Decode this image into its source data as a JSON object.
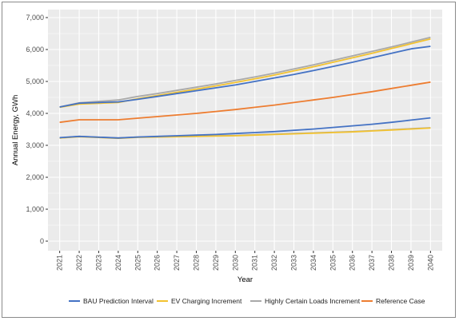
{
  "chart_data": {
    "type": "line",
    "xlabel": "Year",
    "ylabel": "Annual Energy, GWh",
    "x": [
      2021,
      2022,
      2023,
      2024,
      2025,
      2026,
      2027,
      2028,
      2029,
      2030,
      2031,
      2032,
      2033,
      2034,
      2035,
      2036,
      2037,
      2038,
      2039,
      2040
    ],
    "x_tick_labels": [
      "2021",
      "2022",
      "2023",
      "2024",
      "2025",
      "2026",
      "2027",
      "2028",
      "2029",
      "2030",
      "2031",
      "2032",
      "2033",
      "2034",
      "2035",
      "2036",
      "2037",
      "2038",
      "2039",
      "2040"
    ],
    "y_ticks": [
      0,
      1000,
      2000,
      3000,
      4000,
      5000,
      6000,
      7000
    ],
    "y_tick_labels": [
      "0",
      "1,000",
      "2,000",
      "3,000",
      "4,000",
      "5,000",
      "6,000",
      "7,000"
    ],
    "ylim": [
      -300,
      7250
    ],
    "grid": true,
    "legend_position": "bottom",
    "series": [
      {
        "name": "Highly Certain Loads Increment",
        "color": "#a9a9a9",
        "segments": [
          [
            [
              2021,
              4200
            ],
            [
              2022,
              4330
            ],
            [
              2024,
              4420
            ],
            [
              2025,
              4530
            ],
            [
              2026,
              4620
            ],
            [
              2027,
              4720
            ],
            [
              2028,
              4820
            ],
            [
              2029,
              4920
            ],
            [
              2030,
              5030
            ],
            [
              2031,
              5140
            ],
            [
              2032,
              5260
            ],
            [
              2033,
              5390
            ],
            [
              2034,
              5520
            ],
            [
              2035,
              5660
            ],
            [
              2036,
              5800
            ],
            [
              2037,
              5940
            ],
            [
              2038,
              6080
            ],
            [
              2039,
              6230
            ],
            [
              2040,
              6380
            ]
          ],
          [
            [
              2021,
              3230
            ],
            [
              2022,
              3280
            ],
            [
              2024,
              3230
            ],
            [
              2025,
              3260
            ],
            [
              2026,
              3270
            ],
            [
              2027,
              3280
            ],
            [
              2028,
              3290
            ],
            [
              2029,
              3300
            ],
            [
              2030,
              3310
            ],
            [
              2031,
              3330
            ],
            [
              2032,
              3350
            ],
            [
              2033,
              3370
            ],
            [
              2034,
              3390
            ],
            [
              2035,
              3410
            ],
            [
              2036,
              3430
            ],
            [
              2037,
              3460
            ],
            [
              2038,
              3490
            ],
            [
              2039,
              3520
            ],
            [
              2040,
              3550
            ]
          ]
        ]
      },
      {
        "name": "EV Charging Increment",
        "color": "#f2c230",
        "segments": [
          [
            [
              2021,
              4190
            ],
            [
              2022,
              4290
            ],
            [
              2024,
              4340
            ],
            [
              2025,
              4460
            ],
            [
              2026,
              4560
            ],
            [
              2027,
              4660
            ],
            [
              2028,
              4760
            ],
            [
              2029,
              4860
            ],
            [
              2030,
              4970
            ],
            [
              2031,
              5080
            ],
            [
              2032,
              5200
            ],
            [
              2033,
              5330
            ],
            [
              2034,
              5460
            ],
            [
              2035,
              5600
            ],
            [
              2036,
              5740
            ],
            [
              2037,
              5880
            ],
            [
              2038,
              6030
            ],
            [
              2039,
              6180
            ],
            [
              2040,
              6330
            ]
          ],
          [
            [
              2021,
              3230
            ],
            [
              2022,
              3270
            ],
            [
              2024,
              3220
            ],
            [
              2025,
              3250
            ],
            [
              2026,
              3260
            ],
            [
              2027,
              3270
            ],
            [
              2028,
              3280
            ],
            [
              2029,
              3290
            ],
            [
              2030,
              3300
            ],
            [
              2031,
              3320
            ],
            [
              2032,
              3340
            ],
            [
              2033,
              3360
            ],
            [
              2034,
              3380
            ],
            [
              2035,
              3400
            ],
            [
              2036,
              3420
            ],
            [
              2037,
              3450
            ],
            [
              2038,
              3480
            ],
            [
              2039,
              3510
            ],
            [
              2040,
              3540
            ]
          ]
        ]
      },
      {
        "name": "BAU Prediction Interval",
        "color": "#4472c4",
        "segments": [
          [
            [
              2021,
              4200
            ],
            [
              2022,
              4320
            ],
            [
              2024,
              4360
            ],
            [
              2025,
              4440
            ],
            [
              2026,
              4530
            ],
            [
              2027,
              4620
            ],
            [
              2028,
              4710
            ],
            [
              2029,
              4800
            ],
            [
              2030,
              4890
            ],
            [
              2031,
              5000
            ],
            [
              2032,
              5110
            ],
            [
              2033,
              5220
            ],
            [
              2034,
              5340
            ],
            [
              2035,
              5470
            ],
            [
              2036,
              5600
            ],
            [
              2037,
              5740
            ],
            [
              2038,
              5880
            ],
            [
              2039,
              6020
            ],
            [
              2040,
              6100
            ]
          ],
          [
            [
              2021,
              3240
            ],
            [
              2022,
              3280
            ],
            [
              2024,
              3230
            ],
            [
              2025,
              3260
            ],
            [
              2026,
              3280
            ],
            [
              2027,
              3300
            ],
            [
              2028,
              3320
            ],
            [
              2029,
              3340
            ],
            [
              2030,
              3370
            ],
            [
              2031,
              3400
            ],
            [
              2032,
              3430
            ],
            [
              2033,
              3470
            ],
            [
              2034,
              3510
            ],
            [
              2035,
              3560
            ],
            [
              2036,
              3610
            ],
            [
              2037,
              3660
            ],
            [
              2038,
              3720
            ],
            [
              2039,
              3790
            ],
            [
              2040,
              3860
            ]
          ]
        ]
      },
      {
        "name": "Reference Case",
        "color": "#ed7d31",
        "segments": [
          [
            [
              2021,
              3720
            ],
            [
              2022,
              3800
            ],
            [
              2024,
              3800
            ],
            [
              2025,
              3850
            ],
            [
              2026,
              3900
            ],
            [
              2027,
              3950
            ],
            [
              2028,
              4000
            ],
            [
              2029,
              4060
            ],
            [
              2030,
              4120
            ],
            [
              2031,
              4190
            ],
            [
              2032,
              4260
            ],
            [
              2033,
              4340
            ],
            [
              2034,
              4420
            ],
            [
              2035,
              4500
            ],
            [
              2036,
              4590
            ],
            [
              2037,
              4680
            ],
            [
              2038,
              4780
            ],
            [
              2039,
              4880
            ],
            [
              2040,
              4980
            ]
          ]
        ]
      }
    ],
    "legend_order": [
      "BAU Prediction Interval",
      "EV Charging Increment",
      "Highly Certain Loads Increment",
      "Reference Case"
    ],
    "panel_background": "#ebebeb",
    "grid_color": "#ffffff"
  }
}
